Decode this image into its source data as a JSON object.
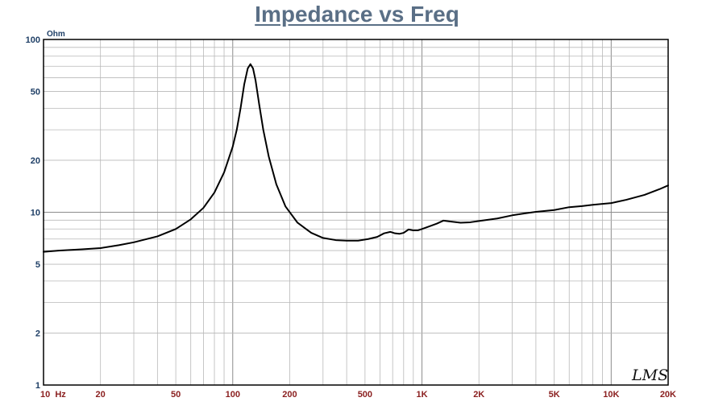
{
  "chart_data": {
    "type": "line",
    "title": "Impedance vs Freq",
    "ylabel": "Ohm",
    "xlabel": "",
    "x_scale": "log",
    "y_scale": "log",
    "xlim": [
      10,
      20000
    ],
    "ylim": [
      1,
      100
    ],
    "grid": true,
    "x_ticks": [
      {
        "value": 10,
        "label": "10  Hz"
      },
      {
        "value": 20,
        "label": "20"
      },
      {
        "value": 50,
        "label": "50"
      },
      {
        "value": 100,
        "label": "100"
      },
      {
        "value": 200,
        "label": "200"
      },
      {
        "value": 500,
        "label": "500"
      },
      {
        "value": 1000,
        "label": "1K"
      },
      {
        "value": 2000,
        "label": "2K"
      },
      {
        "value": 5000,
        "label": "5K"
      },
      {
        "value": 10000,
        "label": "10K"
      },
      {
        "value": 20000,
        "label": "20K"
      }
    ],
    "y_ticks": [
      {
        "value": 1,
        "label": "1"
      },
      {
        "value": 2,
        "label": "2"
      },
      {
        "value": 5,
        "label": "5"
      },
      {
        "value": 10,
        "label": "10"
      },
      {
        "value": 20,
        "label": "20"
      },
      {
        "value": 50,
        "label": "50"
      },
      {
        "value": 100,
        "label": "100"
      }
    ],
    "series": [
      {
        "color": "#000000",
        "x": [
          10,
          12,
          14,
          16,
          20,
          25,
          30,
          40,
          50,
          60,
          70,
          80,
          90,
          100,
          105,
          110,
          115,
          120,
          124,
          128,
          132,
          138,
          145,
          155,
          170,
          190,
          220,
          260,
          300,
          350,
          400,
          460,
          520,
          580,
          630,
          680,
          720,
          760,
          800,
          850,
          900,
          950,
          1000,
          1100,
          1200,
          1300,
          1400,
          1600,
          1800,
          2000,
          2500,
          3000,
          3500,
          4000,
          5000,
          6000,
          7000,
          8000,
          10000,
          12000,
          15000,
          18000,
          20000
        ],
        "y": [
          5.9,
          6.0,
          6.05,
          6.1,
          6.2,
          6.45,
          6.7,
          7.25,
          8.0,
          9.1,
          10.6,
          13.0,
          17.0,
          24.0,
          30.0,
          40.0,
          55.0,
          68.0,
          72.0,
          68.0,
          58.0,
          42.0,
          30.0,
          21.0,
          14.5,
          10.8,
          8.7,
          7.6,
          7.1,
          6.9,
          6.85,
          6.85,
          7.0,
          7.2,
          7.55,
          7.7,
          7.55,
          7.5,
          7.6,
          7.95,
          7.85,
          7.85,
          8.0,
          8.3,
          8.6,
          8.95,
          8.85,
          8.7,
          8.75,
          8.9,
          9.2,
          9.6,
          9.85,
          10.05,
          10.3,
          10.7,
          10.85,
          11.05,
          11.3,
          11.8,
          12.6,
          13.6,
          14.3
        ]
      }
    ]
  },
  "brand_mark": "LMS"
}
